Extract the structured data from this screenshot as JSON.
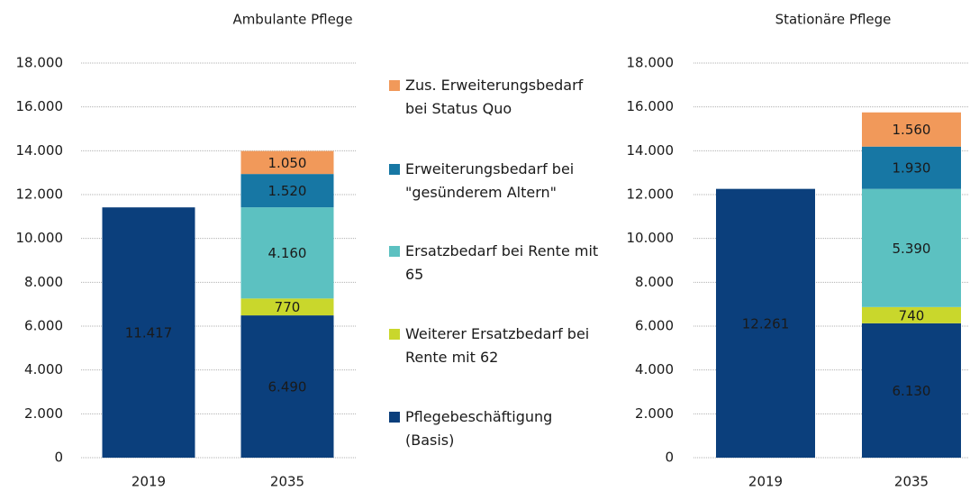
{
  "chart_data": [
    {
      "type": "bar",
      "stacked": true,
      "title": "Ambulante Pflege",
      "categories": [
        "2019",
        "2035"
      ],
      "series": [
        {
          "name": "Pflegebeschäftigung (Basis)",
          "color": "#0b3f7c",
          "values": [
            11417,
            6490
          ],
          "value_labels": [
            "11.417",
            "6.490"
          ]
        },
        {
          "name": "Weiterer Ersatzbedarf bei Rente mit 62",
          "color": "#c9d72c",
          "values": [
            null,
            770
          ],
          "value_labels": [
            null,
            "770"
          ]
        },
        {
          "name": "Ersatzbedarf bei Rente mit 65",
          "color": "#5cc1c1",
          "values": [
            null,
            4160
          ],
          "value_labels": [
            null,
            "4.160"
          ]
        },
        {
          "name": "Erweiterungsbedarf bei \"gesünderem Altern\"",
          "color": "#1777a4",
          "values": [
            null,
            1520
          ],
          "value_labels": [
            null,
            "1.520"
          ]
        },
        {
          "name": "Zus. Erweiterungsbedarf bei Status Quo",
          "color": "#f1995a",
          "values": [
            null,
            1050
          ],
          "value_labels": [
            null,
            "1.050"
          ]
        }
      ],
      "ylim": [
        0,
        18000
      ],
      "yticks": [
        0,
        {
          "value": 2000,
          "label": "2.000"
        },
        {
          "value": 4000,
          "label": "4.000"
        },
        {
          "value": 6000,
          "label": "6.000"
        },
        {
          "value": 8000,
          "label": "8.000"
        },
        {
          "value": 10000,
          "label": "10.000"
        },
        {
          "value": 12000,
          "label": "12.000"
        },
        {
          "value": 14000,
          "label": "14.000"
        },
        {
          "value": 16000,
          "label": "16.000"
        },
        {
          "value": 18000,
          "label": "18.000"
        }
      ],
      "grid": true
    },
    {
      "type": "bar",
      "stacked": true,
      "title": "Stationäre Pflege",
      "categories": [
        "2019",
        "2035"
      ],
      "series": [
        {
          "color": "#0b3f7c",
          "values": [
            12261,
            6130
          ],
          "value_labels": [
            "12.261",
            "6.130"
          ]
        },
        {
          "color": "#c9d72c",
          "values": [
            null,
            740
          ],
          "value_labels": [
            null,
            "740"
          ]
        },
        {
          "color": "#5cc1c1",
          "values": [
            null,
            5390
          ],
          "value_labels": [
            null,
            "5.390"
          ]
        },
        {
          "color": "#1777a4",
          "values": [
            null,
            1930
          ],
          "value_labels": [
            null,
            "1.930"
          ]
        },
        {
          "color": "#f1995a",
          "values": [
            null,
            1560
          ],
          "value_labels": [
            null,
            "1.560"
          ]
        }
      ],
      "ylim": [
        0,
        18000
      ],
      "yticks": [
        0,
        {
          "value": 2000,
          "label": "2.000"
        },
        {
          "value": 4000,
          "label": "4.000"
        },
        {
          "value": 6000,
          "label": "6.000"
        },
        {
          "value": 8000,
          "label": "8.000"
        },
        {
          "value": 10000,
          "label": "10.000"
        },
        {
          "value": 12000,
          "label": "12.000"
        },
        {
          "value": 14000,
          "label": "14.000"
        },
        {
          "value": 16000,
          "label": "16.000"
        },
        {
          "value": 18000,
          "label": "18.000"
        }
      ],
      "grid": true
    }
  ]
}
